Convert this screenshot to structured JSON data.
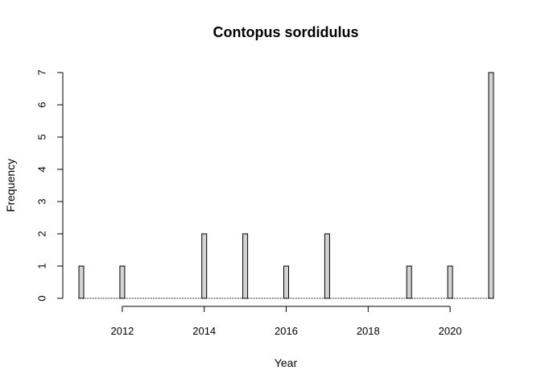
{
  "chart_data": {
    "type": "bar",
    "title": "Contopus sordidulus",
    "xlabel": "Year",
    "ylabel": "Frequency",
    "x": [
      2011,
      2012,
      2014,
      2015,
      2016,
      2017,
      2019,
      2020,
      2021
    ],
    "values": [
      1,
      1,
      2,
      2,
      1,
      2,
      1,
      1,
      7
    ],
    "xlim": [
      2011,
      2021
    ],
    "ylim": [
      0,
      7
    ],
    "xticks": [
      2012,
      2014,
      2016,
      2018,
      2020
    ],
    "yticks": [
      0,
      1,
      2,
      3,
      4,
      5,
      6,
      7
    ],
    "bar_color": "#d3d3d3",
    "grid": false
  }
}
